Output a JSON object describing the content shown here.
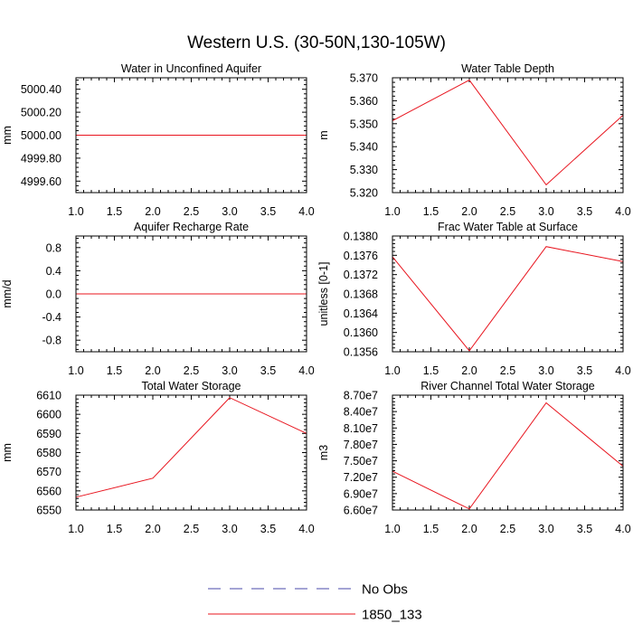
{
  "figure": {
    "title": "Western U.S. (30-50N,130-105W)"
  },
  "legend": {
    "entries": [
      {
        "label": "No Obs",
        "color": "#4a4aa8",
        "dash": true
      },
      {
        "label": "1850_133",
        "color": "#e8141e",
        "dash": false
      }
    ]
  },
  "chart_data": [
    {
      "type": "line",
      "title": "Water in Unconfined Aquifer",
      "ylabel": "mm",
      "xlim": [
        1.0,
        4.0
      ],
      "ylim": [
        4999.5,
        5000.5
      ],
      "xticks": [
        "1.0",
        "1.5",
        "2.0",
        "2.5",
        "3.0",
        "3.5",
        "4.0"
      ],
      "yticks": [
        {
          "v": 4999.6,
          "l": "4999.60"
        },
        {
          "v": 4999.8,
          "l": "4999.80"
        },
        {
          "v": 5000.0,
          "l": "5000.00"
        },
        {
          "v": 5000.2,
          "l": "5000.20"
        },
        {
          "v": 5000.4,
          "l": "5000.40"
        }
      ],
      "series": [
        {
          "name": "1850_133",
          "x": [
            1,
            2,
            3,
            4
          ],
          "y": [
            5000.0,
            5000.0,
            5000.0,
            5000.0
          ]
        }
      ]
    },
    {
      "type": "line",
      "title": "Water Table Depth",
      "ylabel": "m",
      "xlim": [
        1.0,
        4.0
      ],
      "ylim": [
        5.32,
        5.37
      ],
      "xticks": [
        "1.0",
        "1.5",
        "2.0",
        "2.5",
        "3.0",
        "3.5",
        "4.0"
      ],
      "yticks": [
        {
          "v": 5.32,
          "l": "5.320"
        },
        {
          "v": 5.33,
          "l": "5.330"
        },
        {
          "v": 5.34,
          "l": "5.340"
        },
        {
          "v": 5.35,
          "l": "5.350"
        },
        {
          "v": 5.36,
          "l": "5.360"
        },
        {
          "v": 5.37,
          "l": "5.370"
        }
      ],
      "series": [
        {
          "name": "1850_133",
          "x": [
            1,
            2,
            3,
            4
          ],
          "y": [
            5.3513,
            5.369,
            5.3234,
            5.3537
          ]
        }
      ]
    },
    {
      "type": "line",
      "title": "Aquifer Recharge Rate",
      "ylabel": "mm/d",
      "xlim": [
        1.0,
        4.0
      ],
      "ylim": [
        -1.0,
        1.0
      ],
      "xticks": [
        "1.0",
        "1.5",
        "2.0",
        "2.5",
        "3.0",
        "3.5",
        "4.0"
      ],
      "yticks": [
        {
          "v": -0.8,
          "l": "-0.8"
        },
        {
          "v": -0.4,
          "l": "-0.4"
        },
        {
          "v": 0.0,
          "l": "0.0"
        },
        {
          "v": 0.4,
          "l": "0.4"
        },
        {
          "v": 0.8,
          "l": "0.8"
        }
      ],
      "series": [
        {
          "name": "1850_133",
          "x": [
            1,
            2,
            3,
            4
          ],
          "y": [
            0,
            0,
            0,
            0
          ]
        }
      ]
    },
    {
      "type": "line",
      "title": "Frac Water Table at Surface",
      "ylabel": "unitless [0-1]",
      "xlim": [
        1.0,
        4.0
      ],
      "ylim": [
        0.1356,
        0.138
      ],
      "xticks": [
        "1.0",
        "1.5",
        "2.0",
        "2.5",
        "3.0",
        "3.5",
        "4.0"
      ],
      "yticks": [
        {
          "v": 0.1356,
          "l": "0.1356"
        },
        {
          "v": 0.136,
          "l": "0.1360"
        },
        {
          "v": 0.1364,
          "l": "0.1364"
        },
        {
          "v": 0.1368,
          "l": "0.1368"
        },
        {
          "v": 0.1372,
          "l": "0.1372"
        },
        {
          "v": 0.1376,
          "l": "0.1376"
        },
        {
          "v": 0.138,
          "l": "0.1380"
        }
      ],
      "series": [
        {
          "name": "1850_133",
          "x": [
            1,
            2,
            3,
            4
          ],
          "y": [
            0.13757,
            0.13562,
            0.13778,
            0.13747
          ]
        }
      ]
    },
    {
      "type": "line",
      "title": "Total Water Storage",
      "ylabel": "mm",
      "xlim": [
        1.0,
        4.0
      ],
      "ylim": [
        6550,
        6610
      ],
      "xticks": [
        "1.0",
        "1.5",
        "2.0",
        "2.5",
        "3.0",
        "3.5",
        "4.0"
      ],
      "yticks": [
        {
          "v": 6550,
          "l": "6550"
        },
        {
          "v": 6560,
          "l": "6560"
        },
        {
          "v": 6570,
          "l": "6570"
        },
        {
          "v": 6580,
          "l": "6580"
        },
        {
          "v": 6590,
          "l": "6590"
        },
        {
          "v": 6600,
          "l": "6600"
        },
        {
          "v": 6610,
          "l": "6610"
        }
      ],
      "series": [
        {
          "name": "1850_133",
          "x": [
            1,
            2,
            3,
            4
          ],
          "y": [
            6556.7,
            6566.6,
            6608.7,
            6590.0
          ]
        }
      ]
    },
    {
      "type": "line",
      "title": "River Channel Total Water Storage",
      "ylabel": "m3",
      "xlim": [
        1.0,
        4.0
      ],
      "ylim": [
        66000000.0,
        87000000.0
      ],
      "xticks": [
        "1.0",
        "1.5",
        "2.0",
        "2.5",
        "3.0",
        "3.5",
        "4.0"
      ],
      "yticks": [
        {
          "v": 66000000.0,
          "l": "6.60e7"
        },
        {
          "v": 69000000.0,
          "l": "6.90e7"
        },
        {
          "v": 72000000.0,
          "l": "7.20e7"
        },
        {
          "v": 75000000.0,
          "l": "7.50e7"
        },
        {
          "v": 78000000.0,
          "l": "7.80e7"
        },
        {
          "v": 81000000.0,
          "l": "8.10e7"
        },
        {
          "v": 84000000.0,
          "l": "8.40e7"
        },
        {
          "v": 87000000.0,
          "l": "8.70e7"
        }
      ],
      "series": [
        {
          "name": "1850_133",
          "x": [
            1,
            2,
            3,
            4
          ],
          "y": [
            73100000.0,
            66200000.0,
            85600000.0,
            74000000.0
          ]
        }
      ]
    }
  ]
}
